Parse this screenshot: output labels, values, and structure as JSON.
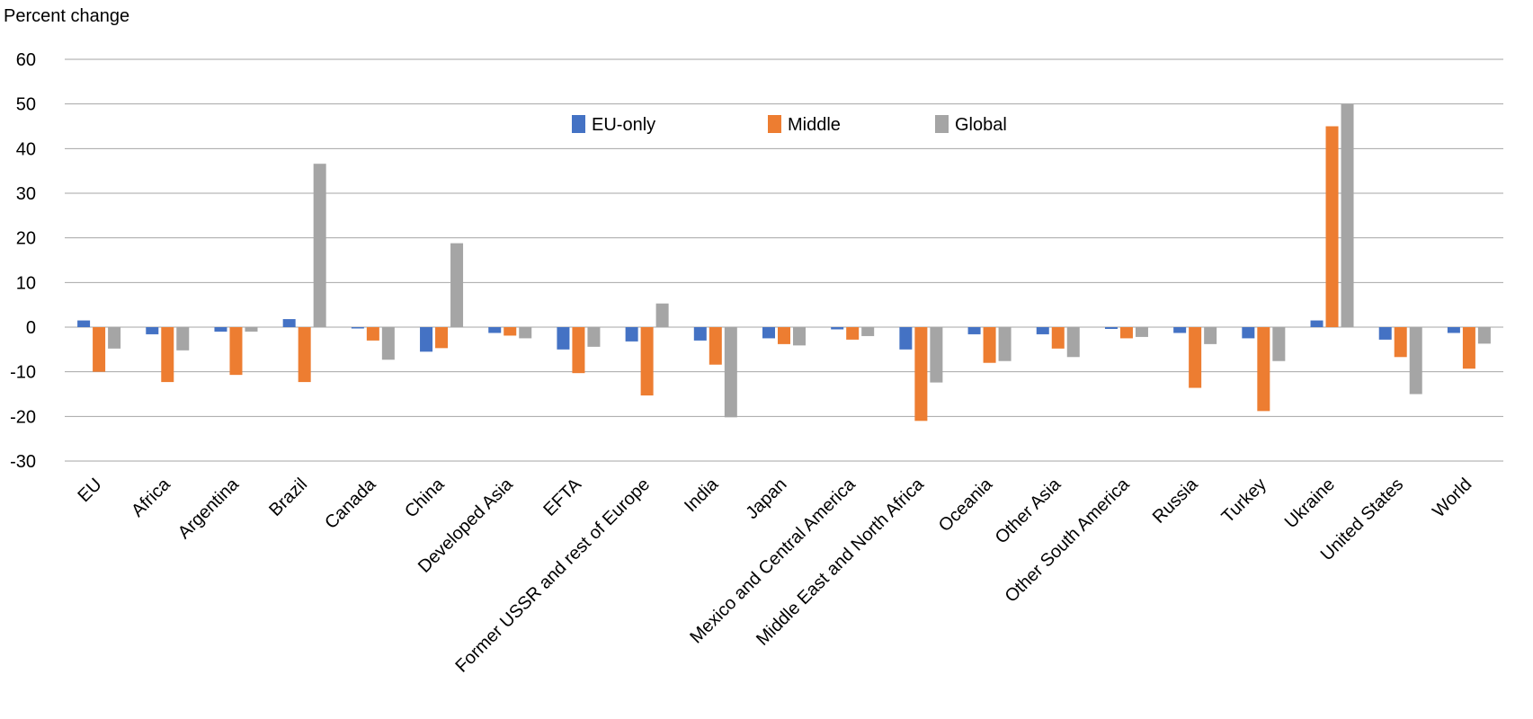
{
  "chart_data": {
    "type": "bar",
    "title": "",
    "xlabel": "",
    "ylabel": "Percent change",
    "ylim": [
      -30,
      60
    ],
    "yticks": [
      60,
      50,
      40,
      30,
      20,
      10,
      0,
      -10,
      -20,
      -30
    ],
    "grid": true,
    "legend_position": "top-center",
    "categories": [
      "EU",
      "Africa",
      "Argentina",
      "Brazil",
      "Canada",
      "China",
      "Developed Asia",
      "EFTA",
      "Former USSR and rest of Europe",
      "India",
      "Japan",
      "Mexico and Central America",
      "Middle East and North Africa",
      "Oceania",
      "Other Asia",
      "Other South America",
      "Russia",
      "Turkey",
      "Ukraine",
      "United States",
      "World"
    ],
    "series": [
      {
        "name": "EU-only",
        "color": "#4472C4",
        "values": [
          1.5,
          -1.6,
          -1.0,
          1.8,
          -0.3,
          -5.5,
          -1.3,
          -5.0,
          -3.2,
          -3.0,
          -2.5,
          -0.5,
          -5.0,
          -1.6,
          -1.6,
          -0.4,
          -1.3,
          -2.5,
          1.5,
          -2.8,
          -1.3
        ]
      },
      {
        "name": "Middle",
        "color": "#ED7D31",
        "values": [
          -10.0,
          -12.3,
          -10.7,
          -12.3,
          -3.0,
          -4.7,
          -1.9,
          -10.3,
          -15.3,
          -8.4,
          -3.8,
          -2.8,
          -21.0,
          -8.0,
          -4.8,
          -2.5,
          -13.6,
          -18.8,
          45.0,
          -6.7,
          -9.3
        ]
      },
      {
        "name": "Global",
        "color": "#A5A5A5",
        "values": [
          -4.8,
          -5.2,
          -1.0,
          36.6,
          -7.3,
          18.8,
          -2.5,
          -4.4,
          5.3,
          -20.2,
          -4.1,
          -2.0,
          -12.4,
          -7.6,
          -6.7,
          -2.2,
          -3.8,
          -7.6,
          50.0,
          -15.0,
          -3.7
        ]
      }
    ]
  }
}
